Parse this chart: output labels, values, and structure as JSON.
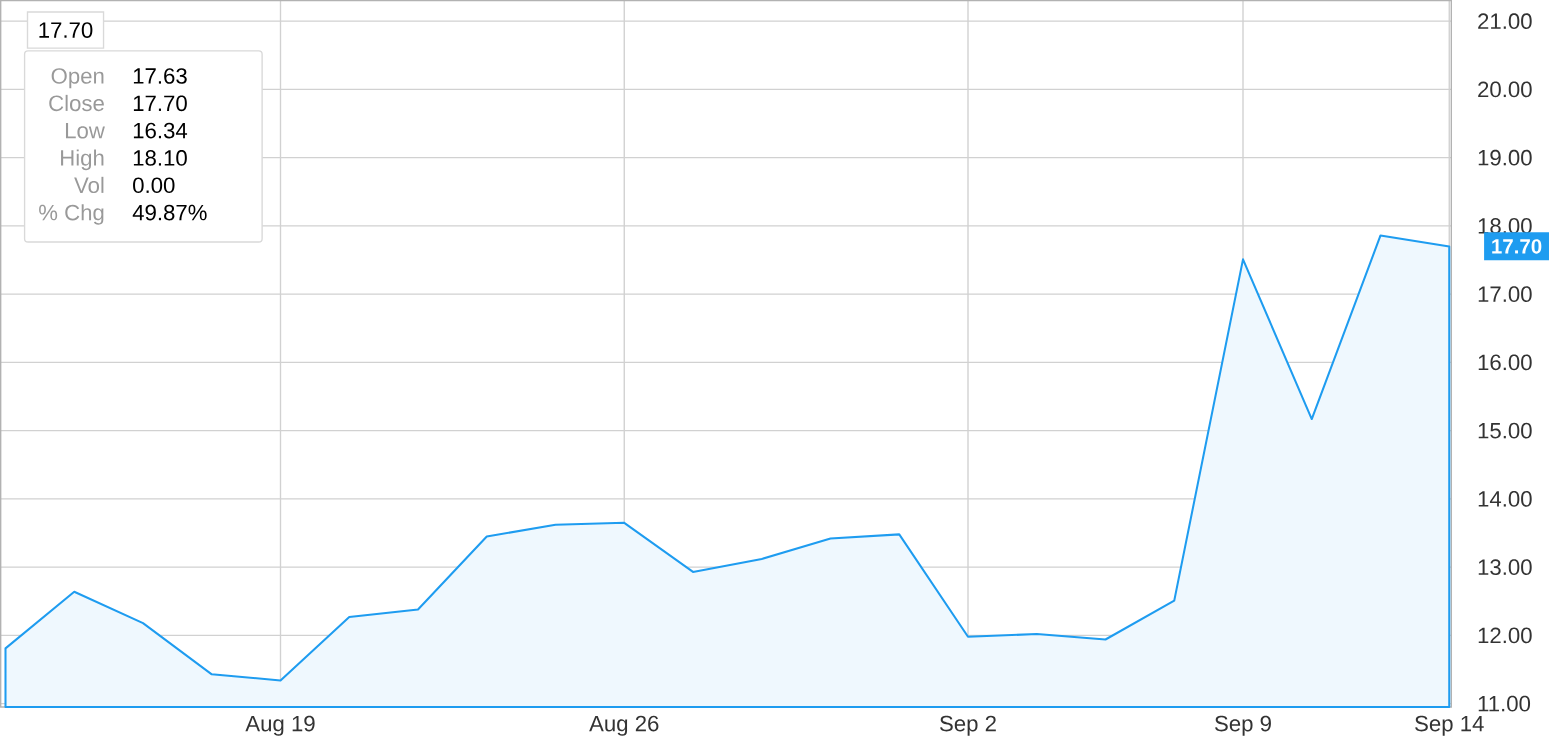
{
  "chart_data": {
    "type": "area",
    "categories": [
      null,
      null,
      null,
      null,
      "Aug 19",
      null,
      null,
      null,
      null,
      "Aug 26",
      null,
      null,
      null,
      null,
      "Sep 2",
      null,
      null,
      null,
      "Sep 9",
      null,
      null,
      "Sep 14"
    ],
    "series": [
      {
        "color": "#1e9cf0",
        "values": [
          11.81,
          12.64,
          12.18,
          11.43,
          11.34,
          12.27,
          12.38,
          13.45,
          13.62,
          13.65,
          12.93,
          13.12,
          13.42,
          13.48,
          11.98,
          12.02,
          11.94,
          12.51,
          17.51,
          15.17,
          17.86,
          17.7
        ]
      }
    ],
    "ylim": [
      10.95,
      21.3
    ],
    "yticks": [
      {
        "value": 11,
        "label": "11.00"
      },
      {
        "value": 12,
        "label": "12.00"
      },
      {
        "value": 13,
        "label": "13.00"
      },
      {
        "value": 14,
        "label": "14.00"
      },
      {
        "value": 15,
        "label": "15.00"
      },
      {
        "value": 16,
        "label": "16.00"
      },
      {
        "value": 17,
        "label": "17.00"
      },
      {
        "value": 18,
        "label": "18.00"
      },
      {
        "value": 19,
        "label": "19.00"
      },
      {
        "value": 20,
        "label": "20.00"
      },
      {
        "value": 21,
        "label": "21.00"
      }
    ],
    "grid": true,
    "annotations": [
      "17.70",
      "Open",
      "17.63",
      "Close",
      "17.70",
      "Low",
      "16.34",
      "High",
      "18.10",
      "Vol",
      "0.00",
      "% Chg",
      "49.87%",
      {
        "text": "17.70",
        "x": "Sep 14",
        "y": 17.7
      }
    ]
  }
}
